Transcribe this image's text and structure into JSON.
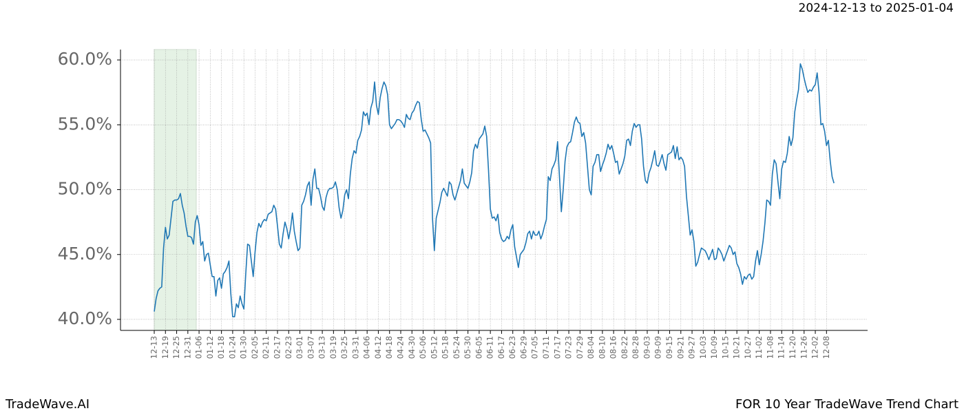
{
  "chart_data": {
    "type": "line",
    "date_range": "2024-12-13 to 2025-01-04",
    "brand": "TradeWave.AI",
    "title": "FOR 10 Year TradeWave Trend Chart",
    "categories": [
      "12-13",
      null,
      null,
      null,
      null,
      null,
      "12-19",
      null,
      null,
      null,
      null,
      null,
      "12-25",
      null,
      null,
      null,
      null,
      null,
      "12-31",
      null,
      null,
      null,
      null,
      null,
      "01-06",
      null,
      null,
      null,
      null,
      null,
      "01-12",
      null,
      null,
      null,
      null,
      null,
      "01-18",
      null,
      null,
      null,
      null,
      null,
      "01-24",
      null,
      null,
      null,
      null,
      null,
      "01-30",
      null,
      null,
      null,
      null,
      null,
      "02-05",
      null,
      null,
      null,
      null,
      null,
      "02-11",
      null,
      null,
      null,
      null,
      null,
      "02-17",
      null,
      null,
      null,
      null,
      null,
      "02-23",
      null,
      null,
      null,
      null,
      null,
      "03-01",
      null,
      null,
      null,
      null,
      null,
      "03-07",
      null,
      null,
      null,
      null,
      null,
      "03-13",
      null,
      null,
      null,
      null,
      null,
      "03-19",
      null,
      null,
      null,
      null,
      null,
      "03-25",
      null,
      null,
      null,
      null,
      null,
      "03-31",
      null,
      null,
      null,
      null,
      null,
      "04-06",
      null,
      null,
      null,
      null,
      null,
      "04-12",
      null,
      null,
      null,
      null,
      null,
      "04-18",
      null,
      null,
      null,
      null,
      null,
      "04-24",
      null,
      null,
      null,
      null,
      null,
      "04-30",
      null,
      null,
      null,
      null,
      null,
      "05-06",
      null,
      null,
      null,
      null,
      null,
      "05-12",
      null,
      null,
      null,
      null,
      null,
      "05-18",
      null,
      null,
      null,
      null,
      null,
      "05-24",
      null,
      null,
      null,
      null,
      null,
      "05-30",
      null,
      null,
      null,
      null,
      null,
      "06-05",
      null,
      null,
      null,
      null,
      null,
      "06-11",
      null,
      null,
      null,
      null,
      null,
      "06-17",
      null,
      null,
      null,
      null,
      null,
      "06-23",
      null,
      null,
      null,
      null,
      null,
      "06-29",
      null,
      null,
      null,
      null,
      null,
      "07-05",
      null,
      null,
      null,
      null,
      null,
      "07-11",
      null,
      null,
      null,
      null,
      null,
      "07-17",
      null,
      null,
      null,
      null,
      null,
      "07-23",
      null,
      null,
      null,
      null,
      null,
      "07-29",
      null,
      null,
      null,
      null,
      null,
      "08-04",
      null,
      null,
      null,
      null,
      null,
      "08-10",
      null,
      null,
      null,
      null,
      null,
      "08-16",
      null,
      null,
      null,
      null,
      null,
      "08-22",
      null,
      null,
      null,
      null,
      null,
      "08-28",
      null,
      null,
      null,
      null,
      null,
      "09-03",
      null,
      null,
      null,
      null,
      null,
      "09-09",
      null,
      null,
      null,
      null,
      null,
      "09-15",
      null,
      null,
      null,
      null,
      null,
      "09-21",
      null,
      null,
      null,
      null,
      null,
      "09-27",
      null,
      null,
      null,
      null,
      null,
      "10-03",
      null,
      null,
      null,
      null,
      null,
      "10-09",
      null,
      null,
      null,
      null,
      null,
      "10-15",
      null,
      null,
      null,
      null,
      null,
      "10-21",
      null,
      null,
      null,
      null,
      null,
      "10-27",
      null,
      null,
      null,
      null,
      null,
      "11-02",
      null,
      null,
      null,
      null,
      null,
      "11-08",
      null,
      null,
      null,
      null,
      null,
      "11-14",
      null,
      null,
      null,
      null,
      null,
      "11-20",
      null,
      null,
      null,
      null,
      null,
      "11-26",
      null,
      null,
      null,
      null,
      null,
      "12-02",
      null,
      null,
      null,
      null,
      null,
      "12-08",
      null,
      null,
      null,
      null
    ],
    "series": [
      {
        "color": "#1f77b4",
        "values": [
          40.6,
          41.6,
          42.2,
          42.4,
          42.5,
          45.5,
          47.1,
          46.2,
          46.5,
          47.8,
          49.1,
          49.2,
          49.2,
          49.3,
          49.7,
          48.8,
          48.2,
          47.2,
          46.4,
          46.4,
          46.3,
          45.8,
          47.5,
          48,
          47.3,
          45.7,
          46,
          44.5,
          45,
          45.1,
          44.2,
          43.3,
          43.3,
          41.8,
          43,
          43.2,
          42.4,
          43.5,
          43.7,
          44,
          44.5,
          42,
          40.2,
          40.2,
          41.2,
          40.9,
          41.8,
          41.2,
          40.8,
          43.5,
          45.8,
          45.7,
          44.5,
          43.3,
          45.2,
          46.7,
          47.4,
          47.1,
          47.5,
          47.7,
          47.6,
          48.1,
          48.2,
          48.3,
          48.8,
          48.5,
          47.2,
          45.8,
          45.5,
          46.6,
          47.5,
          47,
          46.2,
          47,
          48.2,
          46.8,
          46,
          45.3,
          45.5,
          48.8,
          49.1,
          49.6,
          50.3,
          50.6,
          48.8,
          50.8,
          51.6,
          50.1,
          50.1,
          49.5,
          48.7,
          48.4,
          49.4,
          49.9,
          50.1,
          50.1,
          50.2,
          50.6,
          50,
          48.6,
          47.8,
          48.4,
          49.6,
          50,
          49.3,
          51.2,
          52.4,
          53,
          52.8,
          53.8,
          54.1,
          54.6,
          56,
          55.7,
          55.9,
          55,
          56.3,
          56.8,
          58.3,
          56.5,
          55.8,
          57.1,
          57.8,
          58.3,
          58,
          57.3,
          55,
          54.7,
          54.9,
          55.1,
          55.4,
          55.4,
          55.3,
          55.1,
          54.8,
          55.8,
          55.5,
          55.4,
          55.9,
          56.1,
          56.5,
          56.8,
          56.7,
          55.4,
          54.5,
          54.6,
          54.3,
          54,
          53.6,
          47.8,
          45.3,
          47.8,
          48.4,
          49,
          49.8,
          50.1,
          49.8,
          49.5,
          50.6,
          50.4,
          49.6,
          49.2,
          49.7,
          50.2,
          50.7,
          51.6,
          50.5,
          50.3,
          50.1,
          50.6,
          51.3,
          53,
          53.5,
          53.2,
          53.9,
          54.1,
          54.3,
          54.9,
          54.1,
          51.5,
          48.5,
          47.8,
          47.9,
          47.6,
          48.1,
          46.7,
          46.2,
          46,
          46.1,
          46.4,
          46.2,
          46.9,
          47.3,
          45.6,
          44.8,
          44,
          45,
          45.2,
          45.4,
          45.9,
          46.6,
          46.8,
          46.2,
          46.8,
          46.5,
          46.5,
          46.8,
          46.2,
          46.6,
          47.2,
          47.7,
          51,
          50.7,
          51.6,
          51.9,
          52.3,
          53.7,
          51,
          48.3,
          50,
          52.2,
          53.3,
          53.6,
          53.7,
          54.4,
          55.2,
          55.6,
          55.2,
          55.1,
          54.1,
          54.4,
          53.6,
          51.8,
          50,
          49.6,
          51.8,
          52.1,
          52.7,
          52.7,
          51.4,
          51.9,
          52.3,
          52.8,
          53.5,
          53.1,
          53.4,
          52.8,
          52.1,
          52.2,
          51.2,
          51.6,
          52,
          52.6,
          53.8,
          53.9,
          53.4,
          54.5,
          55.1,
          54.8,
          55,
          55,
          53.9,
          51.8,
          50.7,
          50.5,
          51.3,
          51.7,
          52.3,
          53,
          51.9,
          51.8,
          52.2,
          52.7,
          52,
          51.5,
          52.7,
          52.8,
          52.9,
          53.4,
          52.4,
          53.3,
          52.3,
          52.5,
          52.3,
          51.8,
          49.5,
          48,
          46.5,
          46.9,
          46,
          44.1,
          44.4,
          45,
          45.5,
          45.4,
          45.3,
          45,
          44.6,
          45,
          45.4,
          44.6,
          44.7,
          45.5,
          45.3,
          45,
          44.5,
          44.9,
          45.3,
          45.7,
          45.5,
          45,
          45.2,
          44.3,
          44,
          43.5,
          42.7,
          43.3,
          43.1,
          43.4,
          43.5,
          43.1,
          43.3,
          44.5,
          45.3,
          44.2,
          45,
          46,
          47.4,
          49.2,
          49.1,
          48.8,
          51.2,
          52.3,
          52,
          50.6,
          49.3,
          51.6,
          52.2,
          52.1,
          52.8,
          54.1,
          53.4,
          54,
          56,
          56.9,
          57.7,
          59.7,
          59.3,
          58.6,
          58,
          57.5,
          57.7,
          57.6,
          57.9,
          58.1,
          59,
          57.5,
          55,
          55.1,
          54.5,
          53.4,
          53.8,
          52.2,
          51,
          50.5
        ]
      }
    ],
    "highlight_span": [
      0,
      22
    ],
    "highlight_color": "#e5f2e5",
    "ylim": [
      39.15,
      60.8
    ],
    "yticks": [
      {
        "value": 40,
        "label": "40.0%"
      },
      {
        "value": 45,
        "label": "45.0%"
      },
      {
        "value": 50,
        "label": "50.0%"
      },
      {
        "value": 55,
        "label": "55.0%"
      },
      {
        "value": 60,
        "label": "60.0%"
      }
    ],
    "grid": true
  }
}
